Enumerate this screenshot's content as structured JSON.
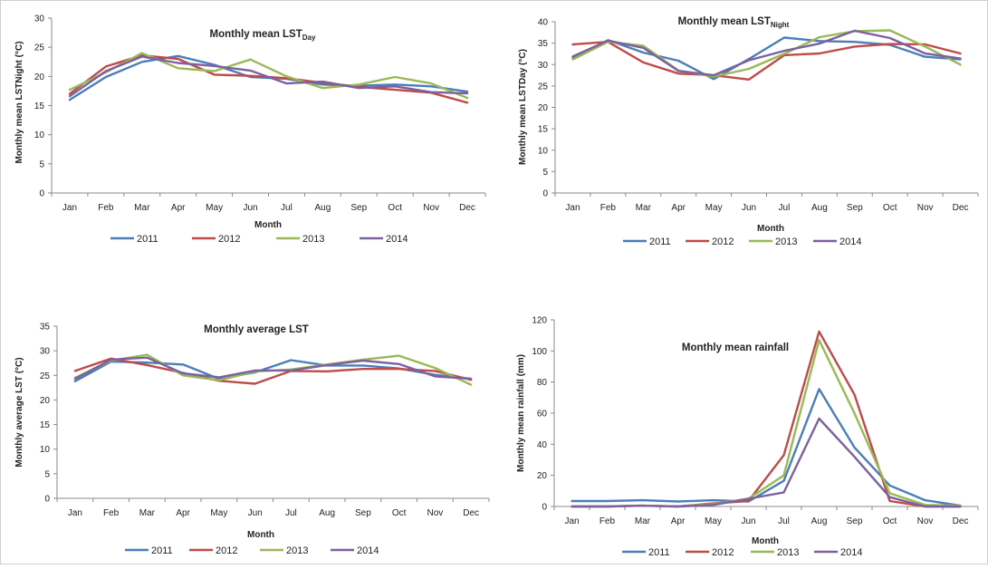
{
  "colors": {
    "2011": "#4a7ebb",
    "2012": "#be4b48",
    "2013": "#98b954",
    "2014": "#7d60a0"
  },
  "chart_data": [
    {
      "type": "line",
      "title_main": "Monthly mean LST",
      "title_sub": "Day",
      "xlabel": "Month",
      "ylabel": "Monthly mean LSTNight (°C)",
      "ylim": [
        0,
        30
      ],
      "yticks": [
        0,
        5,
        10,
        15,
        20,
        25,
        30
      ],
      "categories": [
        "Jan",
        "Feb",
        "Mar",
        "Apr",
        "May",
        "Jun",
        "Jul",
        "Aug",
        "Sep",
        "Oct",
        "Nov",
        "Dec"
      ],
      "legend": "bottom",
      "series": [
        {
          "name": "2011",
          "values": [
            16.0,
            19.9,
            22.5,
            23.5,
            22.0,
            19.9,
            19.6,
            18.6,
            18.4,
            18.6,
            18.3,
            17.4
          ]
        },
        {
          "name": "2012",
          "values": [
            17.0,
            21.7,
            23.6,
            23.0,
            20.3,
            20.1,
            19.7,
            18.9,
            18.2,
            17.7,
            17.2,
            15.5
          ]
        },
        {
          "name": "2013",
          "values": [
            17.7,
            20.7,
            24.0,
            21.4,
            20.9,
            22.9,
            20.0,
            18.0,
            18.6,
            19.9,
            18.8,
            16.3
          ]
        },
        {
          "name": "2014",
          "values": [
            16.6,
            20.9,
            23.4,
            22.3,
            21.8,
            21.0,
            18.8,
            19.1,
            18.0,
            18.3,
            17.3,
            17.1
          ]
        }
      ]
    },
    {
      "type": "line",
      "title_main": "Monthly mean LST",
      "title_sub": "Night",
      "xlabel": "Month",
      "ylabel": "Monthly mean LSTDay (°C)",
      "ylim": [
        0,
        40
      ],
      "yticks": [
        0,
        5,
        10,
        15,
        20,
        25,
        30,
        35,
        40
      ],
      "categories": [
        "Jan",
        "Feb",
        "Mar",
        "Apr",
        "May",
        "Jun",
        "Jul",
        "Aug",
        "Sep",
        "Oct",
        "Nov",
        "Dec"
      ],
      "legend": "bottom",
      "series": [
        {
          "name": "2011",
          "values": [
            31.6,
            35.7,
            32.8,
            30.9,
            26.6,
            31.3,
            36.3,
            35.5,
            35.3,
            34.6,
            31.8,
            31.2
          ]
        },
        {
          "name": "2012",
          "values": [
            34.7,
            35.3,
            30.5,
            27.9,
            27.5,
            26.5,
            32.2,
            32.6,
            34.2,
            34.8,
            34.7,
            32.6
          ]
        },
        {
          "name": "2013",
          "values": [
            31.2,
            35.3,
            34.4,
            28.6,
            27.2,
            29.0,
            32.5,
            36.4,
            37.8,
            38.0,
            34.2,
            30.0
          ]
        },
        {
          "name": "2014",
          "values": [
            31.9,
            35.6,
            33.9,
            28.5,
            27.5,
            31.0,
            33.2,
            34.9,
            37.9,
            36.2,
            32.6,
            31.4
          ]
        }
      ]
    },
    {
      "type": "line",
      "title": "Monthly average LST",
      "xlabel": "Month",
      "ylabel": "Monthly average LST (°C)",
      "ylim": [
        0,
        35
      ],
      "yticks": [
        0,
        5,
        10,
        15,
        20,
        25,
        30,
        35
      ],
      "categories": [
        "Jan",
        "Feb",
        "Mar",
        "Apr",
        "May",
        "Jun",
        "Jul",
        "Aug",
        "Sep",
        "Oct",
        "Nov",
        "Dec"
      ],
      "legend": "bottom",
      "series": [
        {
          "name": "2011",
          "values": [
            23.8,
            27.8,
            27.6,
            27.2,
            24.3,
            25.6,
            28.1,
            27.0,
            27.0,
            26.4,
            25.1,
            24.3
          ]
        },
        {
          "name": "2012",
          "values": [
            25.9,
            28.4,
            27.1,
            25.5,
            23.9,
            23.3,
            25.9,
            25.8,
            26.3,
            26.3,
            25.9,
            24.1
          ]
        },
        {
          "name": "2013",
          "values": [
            24.5,
            28.0,
            29.2,
            25.0,
            24.0,
            25.8,
            26.2,
            27.2,
            28.2,
            29.0,
            26.5,
            23.1
          ]
        },
        {
          "name": "2014",
          "values": [
            24.3,
            28.2,
            28.6,
            25.4,
            24.6,
            26.0,
            26.0,
            27.1,
            28.0,
            27.3,
            24.8,
            24.3
          ]
        }
      ]
    },
    {
      "type": "line",
      "title": "Monthly mean rainfall",
      "xlabel": "Month",
      "ylabel": "Monthly mean rainfall  (mm)",
      "ylim": [
        0,
        120
      ],
      "yticks": [
        0,
        20,
        40,
        60,
        80,
        100,
        120
      ],
      "categories": [
        "Jan",
        "Feb",
        "Mar",
        "Apr",
        "May",
        "Jun",
        "Jul",
        "Aug",
        "Sep",
        "Oct",
        "Nov",
        "Dec"
      ],
      "legend": "bottom",
      "series": [
        {
          "name": "2011",
          "values": [
            3.5,
            3.5,
            4.0,
            3.2,
            4.0,
            3.2,
            16.5,
            75.5,
            38.0,
            13.5,
            4.0,
            0.5
          ]
        },
        {
          "name": "2012",
          "values": [
            0,
            0,
            0.5,
            0,
            2.0,
            3.5,
            33.0,
            112.5,
            72.0,
            3.5,
            0,
            0
          ]
        },
        {
          "name": "2013",
          "values": [
            0,
            0,
            0.5,
            0,
            1.5,
            5.0,
            20.0,
            107.0,
            60.0,
            8.5,
            1.0,
            0.5
          ]
        },
        {
          "name": "2014",
          "values": [
            0,
            0,
            0.5,
            0,
            1.0,
            5.0,
            9.0,
            56.5,
            32.0,
            6.0,
            0,
            0
          ]
        }
      ]
    }
  ]
}
